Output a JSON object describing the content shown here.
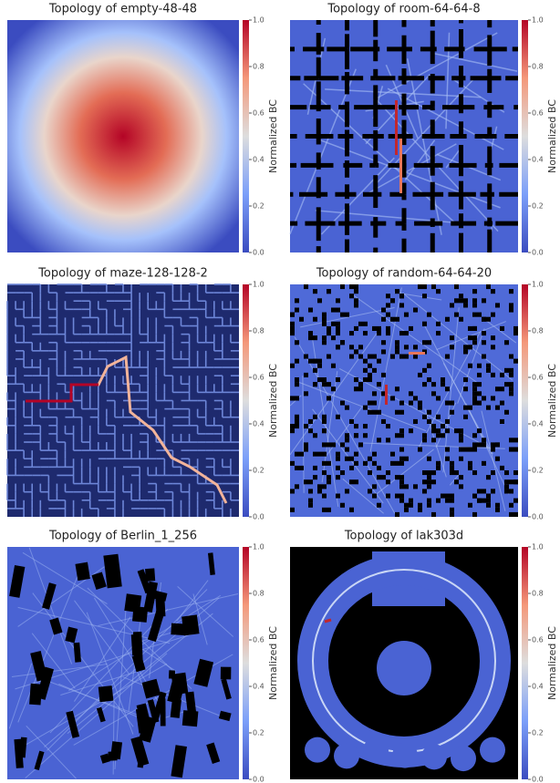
{
  "chart_data": [
    {
      "type": "heatmap",
      "title": "Topology of empty-48-48",
      "colorbar_label": "Normalized BC",
      "clim": [
        0,
        1
      ],
      "cticks": [
        {
          "value": 0,
          "label": "0.0"
        },
        {
          "value": 0.2,
          "label": "0.2"
        },
        {
          "value": 0.4,
          "label": "0.4"
        },
        {
          "value": 0.6,
          "label": "0.6"
        },
        {
          "value": 0.8,
          "label": "0.8"
        },
        {
          "value": 1,
          "label": "1.0"
        }
      ]
    },
    {
      "type": "heatmap",
      "title": "Topology of room-64-64-8",
      "colorbar_label": "Normalized BC",
      "clim": [
        0,
        1
      ],
      "cticks": [
        {
          "value": 0,
          "label": "0.0"
        },
        {
          "value": 0.2,
          "label": "0.2"
        },
        {
          "value": 0.4,
          "label": "0.4"
        },
        {
          "value": 0.6,
          "label": "0.6"
        },
        {
          "value": 0.8,
          "label": "0.8"
        },
        {
          "value": 1,
          "label": "1.0"
        }
      ]
    },
    {
      "type": "heatmap",
      "title": "Topology of maze-128-128-2",
      "colorbar_label": "Normalized BC",
      "clim": [
        0,
        1
      ],
      "cticks": [
        {
          "value": 0,
          "label": "0.0"
        },
        {
          "value": 0.2,
          "label": "0.2"
        },
        {
          "value": 0.4,
          "label": "0.4"
        },
        {
          "value": 0.6,
          "label": "0.6"
        },
        {
          "value": 0.8,
          "label": "0.8"
        },
        {
          "value": 1,
          "label": "1.0"
        }
      ]
    },
    {
      "type": "heatmap",
      "title": "Topology of random-64-64-20",
      "colorbar_label": "Normalized BC",
      "clim": [
        0,
        1
      ],
      "cticks": [
        {
          "value": 0,
          "label": "0.0"
        },
        {
          "value": 0.2,
          "label": "0.2"
        },
        {
          "value": 0.4,
          "label": "0.4"
        },
        {
          "value": 0.6,
          "label": "0.6"
        },
        {
          "value": 0.8,
          "label": "0.8"
        },
        {
          "value": 1,
          "label": "1.0"
        }
      ]
    },
    {
      "type": "heatmap",
      "title": "Topology of Berlin_1_256",
      "colorbar_label": "Normalized BC",
      "clim": [
        0,
        1
      ],
      "cticks": [
        {
          "value": 0,
          "label": "0.0"
        },
        {
          "value": 0.2,
          "label": "0.2"
        },
        {
          "value": 0.4,
          "label": "0.4"
        },
        {
          "value": 0.6,
          "label": "0.6"
        },
        {
          "value": 0.8,
          "label": "0.8"
        },
        {
          "value": 1,
          "label": "1.0"
        }
      ]
    },
    {
      "type": "heatmap",
      "title": "Topology of lak303d",
      "colorbar_label": "Normalized BC",
      "clim": [
        0,
        1
      ],
      "cticks": [
        {
          "value": 0,
          "label": "0.0"
        },
        {
          "value": 0.2,
          "label": "0.2"
        },
        {
          "value": 0.4,
          "label": "0.4"
        },
        {
          "value": 0.6,
          "label": "0.6"
        },
        {
          "value": 0.8,
          "label": "0.8"
        },
        {
          "value": 1,
          "label": "1.0"
        }
      ]
    }
  ]
}
